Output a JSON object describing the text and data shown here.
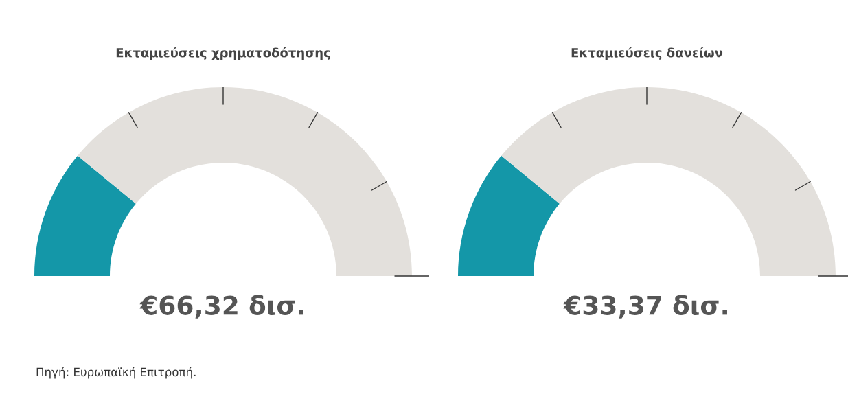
{
  "chart_data": [
    {
      "type": "donut",
      "title": "Εκταμιεύσεις χρηματοδότησης",
      "categories": [
        null,
        null
      ],
      "values": [
        22,
        78
      ],
      "colors": [
        "#1497a8",
        "#e3e0dc"
      ],
      "annotations": [
        "€66,32 δισ.",
        "Πηγή: Ευρωπαϊκή Επιτροπή."
      ]
    },
    {
      "type": "donut",
      "title": "Εκταμιεύσεις δανείων",
      "categories": [
        null,
        null
      ],
      "values": [
        22,
        78
      ],
      "colors": [
        "#1497a8",
        "#e3e0dc"
      ],
      "annotations": [
        "€33,37 δισ."
      ]
    }
  ]
}
